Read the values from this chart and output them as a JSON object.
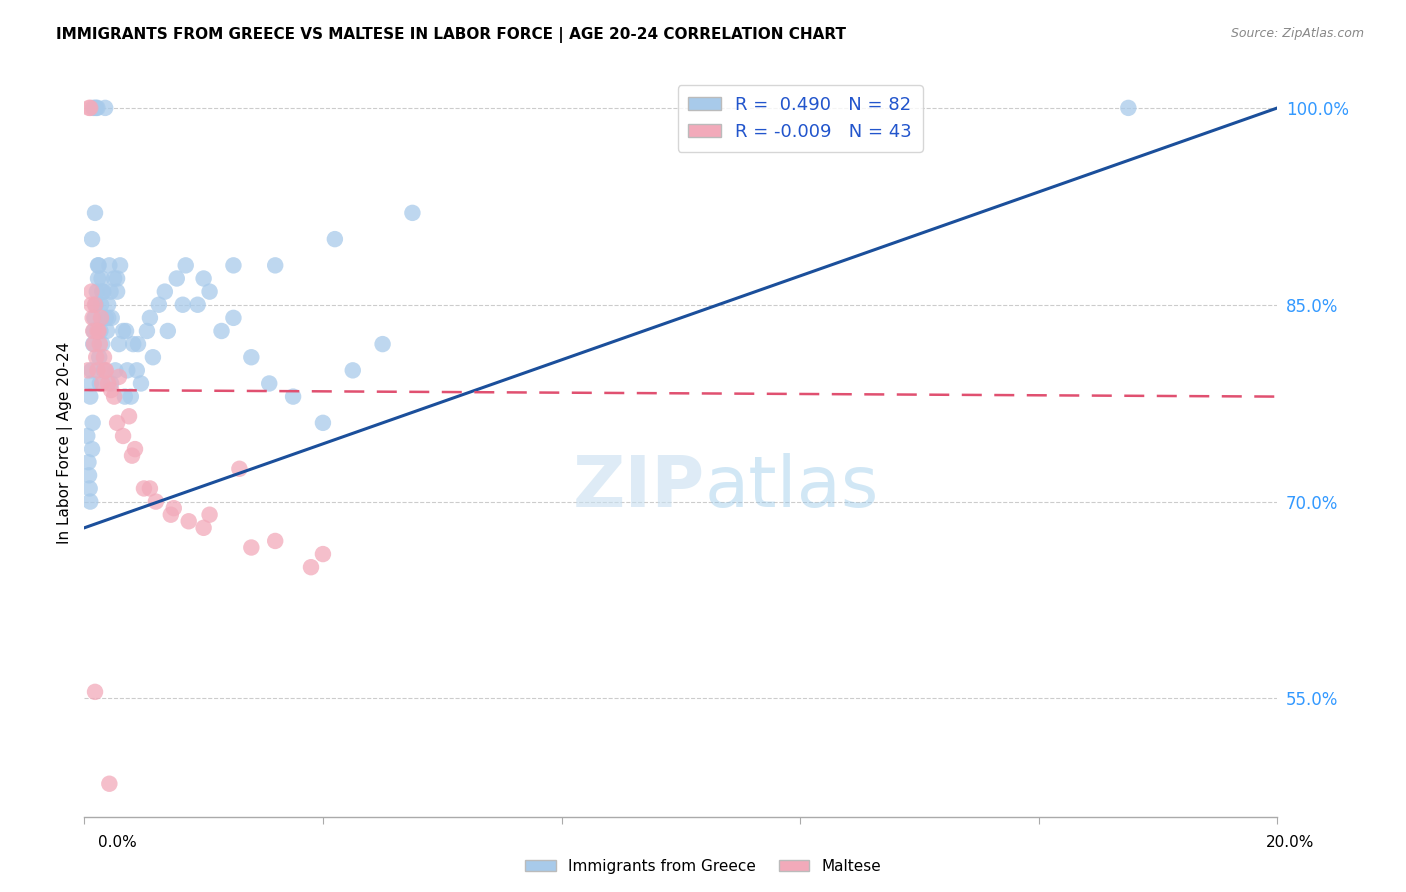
{
  "title": "IMMIGRANTS FROM GREECE VS MALTESE IN LABOR FORCE | AGE 20-24 CORRELATION CHART",
  "source": "Source: ZipAtlas.com",
  "ylabel": "In Labor Force | Age 20-24",
  "legend_label_blue": "Immigrants from Greece",
  "legend_label_pink": "Maltese",
  "r_blue": 0.49,
  "n_blue": 82,
  "r_pink": -0.009,
  "n_pink": 43,
  "xmin": 0.0,
  "xmax": 20.0,
  "ymin": 46.0,
  "ymax": 103.0,
  "yticks": [
    55.0,
    70.0,
    85.0,
    100.0
  ],
  "blue_color": "#A8CAEA",
  "pink_color": "#F2AABA",
  "trend_blue": "#1B4F9B",
  "trend_pink": "#E05070",
  "blue_scatter_x": [
    0.05,
    0.07,
    0.08,
    0.09,
    0.1,
    0.1,
    0.11,
    0.12,
    0.13,
    0.14,
    0.15,
    0.15,
    0.16,
    0.17,
    0.18,
    0.19,
    0.2,
    0.21,
    0.22,
    0.23,
    0.24,
    0.25,
    0.26,
    0.27,
    0.28,
    0.29,
    0.3,
    0.32,
    0.33,
    0.35,
    0.36,
    0.38,
    0.4,
    0.42,
    0.44,
    0.46,
    0.5,
    0.52,
    0.55,
    0.58,
    0.6,
    0.65,
    0.68,
    0.72,
    0.78,
    0.82,
    0.88,
    0.95,
    1.05,
    1.15,
    1.25,
    1.4,
    1.55,
    1.7,
    1.9,
    2.1,
    2.3,
    2.5,
    2.8,
    3.1,
    3.5,
    4.0,
    4.5,
    5.0,
    0.13,
    0.18,
    0.23,
    0.3,
    0.4,
    0.55,
    0.7,
    0.9,
    1.1,
    1.35,
    1.65,
    2.0,
    2.5,
    3.2,
    4.2,
    5.5,
    17.5,
    0.45
  ],
  "blue_scatter_y": [
    75.0,
    73.0,
    72.0,
    71.0,
    70.0,
    78.0,
    79.0,
    80.0,
    74.0,
    76.0,
    100.0,
    82.0,
    83.0,
    84.0,
    100.0,
    85.0,
    100.0,
    86.0,
    100.0,
    87.0,
    88.0,
    81.0,
    79.0,
    83.0,
    85.0,
    87.0,
    82.0,
    86.0,
    80.0,
    100.0,
    84.0,
    83.0,
    85.0,
    88.0,
    86.0,
    84.0,
    87.0,
    80.0,
    86.0,
    82.0,
    88.0,
    83.0,
    78.0,
    80.0,
    78.0,
    82.0,
    80.0,
    79.0,
    83.0,
    81.0,
    85.0,
    83.0,
    87.0,
    88.0,
    85.0,
    86.0,
    83.0,
    84.0,
    81.0,
    79.0,
    78.0,
    76.0,
    80.0,
    82.0,
    90.0,
    92.0,
    88.0,
    86.0,
    84.0,
    87.0,
    83.0,
    82.0,
    84.0,
    86.0,
    85.0,
    87.0,
    88.0,
    88.0,
    90.0,
    92.0,
    100.0,
    79.0
  ],
  "pink_scatter_x": [
    0.06,
    0.08,
    0.1,
    0.12,
    0.14,
    0.15,
    0.16,
    0.18,
    0.2,
    0.22,
    0.24,
    0.26,
    0.28,
    0.3,
    0.33,
    0.36,
    0.4,
    0.45,
    0.5,
    0.58,
    0.65,
    0.75,
    0.85,
    1.0,
    1.2,
    1.45,
    1.75,
    2.1,
    2.6,
    3.2,
    4.0,
    0.12,
    0.22,
    0.35,
    0.55,
    0.8,
    1.1,
    1.5,
    2.0,
    2.8,
    3.8,
    0.18,
    0.42
  ],
  "pink_scatter_y": [
    80.0,
    100.0,
    100.0,
    85.0,
    84.0,
    83.0,
    82.0,
    85.0,
    81.0,
    80.0,
    83.0,
    82.0,
    84.0,
    79.0,
    81.0,
    80.0,
    79.0,
    78.5,
    78.0,
    79.5,
    75.0,
    76.5,
    74.0,
    71.0,
    70.0,
    69.0,
    68.5,
    69.0,
    72.5,
    67.0,
    66.0,
    86.0,
    83.0,
    80.0,
    76.0,
    73.5,
    71.0,
    69.5,
    68.0,
    66.5,
    65.0,
    55.5,
    48.5
  ],
  "trend_blue_x0": 0.0,
  "trend_blue_y0": 68.0,
  "trend_blue_x1": 20.0,
  "trend_blue_y1": 100.0,
  "trend_pink_x0": 0.0,
  "trend_pink_y0": 78.5,
  "trend_pink_x1": 20.0,
  "trend_pink_y1": 78.0
}
